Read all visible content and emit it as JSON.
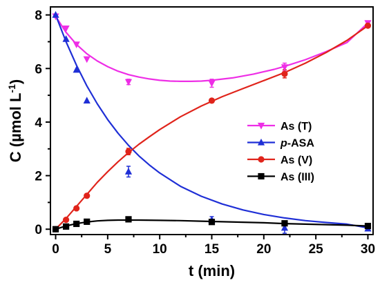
{
  "chart_data": {
    "type": "scatter",
    "xlabel": "t (min)",
    "ylabel": "C (µmol L",
    "ylabel_sup": "-1",
    "ylabel_close": ")",
    "xlim": [
      -0.5,
      30.5
    ],
    "ylim": [
      -0.2,
      8.3
    ],
    "x_ticks": [
      0,
      5,
      10,
      15,
      20,
      25,
      30
    ],
    "y_ticks": [
      0,
      2,
      4,
      6,
      8
    ],
    "x_tick_labels": [
      "0",
      "5",
      "10",
      "15",
      "20",
      "25",
      "30"
    ],
    "y_tick_labels": [
      "0",
      "2",
      "4",
      "6",
      "8"
    ],
    "grid": false,
    "legend_position": "center-right",
    "series": [
      {
        "name": "As (T)",
        "name_parts": [
          {
            "text": "As (T)",
            "italic": false
          }
        ],
        "color": "#ee2ee6",
        "marker": "triangle-down",
        "x": [
          0,
          1,
          2,
          3,
          7,
          15,
          22,
          30
        ],
        "y": [
          7.95,
          7.5,
          6.9,
          6.35,
          5.5,
          5.45,
          6.05,
          7.7
        ],
        "err": [
          0,
          0,
          0,
          0,
          0.1,
          0.15,
          0.15,
          0
        ],
        "fit": {
          "x": [
            0,
            1,
            2,
            3,
            4,
            5,
            6,
            7,
            8,
            9,
            10,
            11,
            12,
            13,
            14,
            15,
            17,
            19,
            21,
            22,
            24,
            26,
            28,
            30
          ],
          "y": [
            7.95,
            7.35,
            6.9,
            6.55,
            6.28,
            6.07,
            5.9,
            5.77,
            5.68,
            5.61,
            5.56,
            5.53,
            5.52,
            5.52,
            5.53,
            5.56,
            5.65,
            5.79,
            5.97,
            6.08,
            6.33,
            6.63,
            6.97,
            7.7
          ]
        }
      },
      {
        "name": "p-ASA",
        "name_parts": [
          {
            "text": "p",
            "italic": true
          },
          {
            "text": "-ASA",
            "italic": false
          }
        ],
        "color": "#1f2fd6",
        "marker": "triangle-up",
        "x": [
          0,
          1,
          2,
          3,
          7,
          15,
          22,
          30
        ],
        "y": [
          8.0,
          7.1,
          5.95,
          4.8,
          2.15,
          0.35,
          0.05,
          0.02
        ],
        "err": [
          0,
          0,
          0,
          0,
          0.2,
          0.12,
          0.2,
          0
        ],
        "fit": {
          "x": [
            0,
            1,
            2,
            3,
            4,
            5,
            6,
            7,
            8,
            9,
            10,
            12,
            14,
            16,
            18,
            20,
            22,
            24,
            26,
            28,
            30
          ],
          "y": [
            8.0,
            7.0,
            6.12,
            5.35,
            4.68,
            4.09,
            3.58,
            3.13,
            2.74,
            2.4,
            2.1,
            1.6,
            1.23,
            0.94,
            0.72,
            0.55,
            0.42,
            0.32,
            0.25,
            0.19,
            0.05
          ]
        }
      },
      {
        "name": "As (V)",
        "name_parts": [
          {
            "text": "As (V)",
            "italic": false
          }
        ],
        "color": "#e0241b",
        "marker": "circle",
        "x": [
          0,
          1,
          2,
          3,
          7,
          15,
          22,
          30
        ],
        "y": [
          0.0,
          0.35,
          0.78,
          1.25,
          2.9,
          4.8,
          5.8,
          7.6
        ],
        "err": [
          0,
          0,
          0,
          0,
          0.12,
          0,
          0.15,
          0
        ],
        "fit": {
          "x": [
            0,
            1,
            2,
            3,
            4,
            5,
            6,
            7,
            8,
            9,
            10,
            12,
            14,
            16,
            18,
            20,
            22,
            24,
            26,
            28,
            30
          ],
          "y": [
            0.0,
            0.4,
            0.85,
            1.3,
            1.75,
            2.15,
            2.52,
            2.86,
            3.17,
            3.45,
            3.72,
            4.2,
            4.6,
            4.95,
            5.25,
            5.55,
            5.85,
            6.2,
            6.6,
            7.05,
            7.6
          ]
        }
      },
      {
        "name": "As (III)",
        "name_parts": [
          {
            "text": "As (III)",
            "italic": false
          }
        ],
        "color": "#000000",
        "marker": "square",
        "x": [
          0,
          1,
          2,
          3,
          7,
          15,
          22,
          30
        ],
        "y": [
          0.0,
          0.1,
          0.2,
          0.28,
          0.37,
          0.27,
          0.22,
          0.12
        ],
        "err": [
          0,
          0,
          0,
          0,
          0,
          0,
          0,
          0
        ],
        "fit": {
          "x": [
            0,
            1,
            2,
            3,
            4,
            5,
            6,
            7,
            8,
            10,
            12,
            14,
            16,
            18,
            20,
            22,
            24,
            26,
            28,
            30
          ],
          "y": [
            0.0,
            0.12,
            0.21,
            0.27,
            0.31,
            0.33,
            0.34,
            0.34,
            0.34,
            0.33,
            0.32,
            0.3,
            0.28,
            0.26,
            0.24,
            0.21,
            0.19,
            0.17,
            0.15,
            0.12
          ]
        }
      }
    ]
  }
}
